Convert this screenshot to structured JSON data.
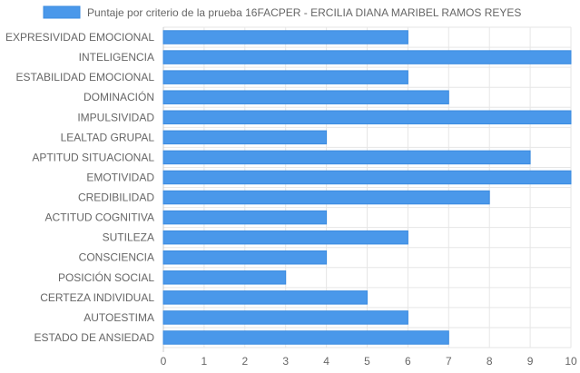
{
  "chart_data": {
    "type": "bar",
    "orientation": "horizontal",
    "categories": [
      "EXPRESIVIDAD EMOCIONAL",
      "INTELIGENCIA",
      "ESTABILIDAD EMOCIONAL",
      "DOMINACIÓN",
      "IMPULSIVIDAD",
      "LEALTAD GRUPAL",
      "APTITUD SITUACIONAL",
      "EMOTIVIDAD",
      "CREDIBILIDAD",
      "ACTITUD COGNITIVA",
      "SUTILEZA",
      "CONSCIENCIA",
      "POSICIÓN SOCIAL",
      "CERTEZA INDIVIDUAL",
      "AUTOESTIMA",
      "ESTADO DE ANSIEDAD"
    ],
    "series": [
      {
        "name": "Puntaje por criterio de la prueba 16FACPER - ERCILIA DIANA MARIBEL RAMOS REYES",
        "values": [
          6,
          10,
          6,
          7,
          10,
          4,
          9,
          10,
          8,
          4,
          6,
          4,
          3,
          5,
          6,
          7
        ]
      }
    ],
    "xlim": [
      0,
      10
    ],
    "xticks": [
      "0",
      "1",
      "2",
      "3",
      "4",
      "5",
      "6",
      "7",
      "8",
      "9",
      "10"
    ],
    "grid": true,
    "legend_position": "top",
    "colors": {
      "bar_fill": "#4a98ea",
      "bar_border": "#3b8be0",
      "grid": "#e6e6e6",
      "text": "#666666"
    }
  }
}
